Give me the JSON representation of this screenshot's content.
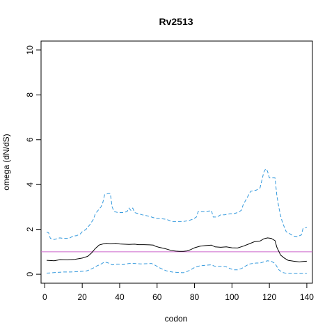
{
  "chart_data": {
    "type": "line",
    "title": "Rv2513",
    "xlabel": "codon",
    "ylabel": "omega (dN/dS)",
    "xlim": [
      -2,
      143
    ],
    "ylim": [
      -0.4,
      10.4
    ],
    "x_ticks": [
      0,
      20,
      40,
      60,
      80,
      100,
      120,
      140
    ],
    "y_ticks": [
      0,
      2,
      4,
      6,
      8,
      10
    ],
    "grid": false,
    "reference_line": {
      "y": 1,
      "color": "#cc66cc"
    },
    "colors": {
      "mean": "#000000",
      "bounds": "#3399dd"
    },
    "series": [
      {
        "style": "solid",
        "points": [
          [
            1,
            0.62
          ],
          [
            5,
            0.6
          ],
          [
            8,
            0.65
          ],
          [
            12,
            0.64
          ],
          [
            16,
            0.66
          ],
          [
            20,
            0.72
          ],
          [
            23,
            0.8
          ],
          [
            25,
            0.95
          ],
          [
            27,
            1.15
          ],
          [
            29,
            1.3
          ],
          [
            31,
            1.35
          ],
          [
            33,
            1.38
          ],
          [
            35,
            1.36
          ],
          [
            38,
            1.38
          ],
          [
            40,
            1.35
          ],
          [
            42,
            1.34
          ],
          [
            45,
            1.33
          ],
          [
            48,
            1.34
          ],
          [
            50,
            1.32
          ],
          [
            53,
            1.32
          ],
          [
            56,
            1.31
          ],
          [
            58,
            1.3
          ],
          [
            59,
            1.25
          ],
          [
            61,
            1.2
          ],
          [
            64,
            1.15
          ],
          [
            66,
            1.1
          ],
          [
            68,
            1.05
          ],
          [
            70,
            1.03
          ],
          [
            72,
            1.02
          ],
          [
            74,
            1.02
          ],
          [
            76,
            1.04
          ],
          [
            78,
            1.1
          ],
          [
            80,
            1.18
          ],
          [
            83,
            1.25
          ],
          [
            86,
            1.28
          ],
          [
            89,
            1.3
          ],
          [
            91,
            1.22
          ],
          [
            94,
            1.2
          ],
          [
            97,
            1.22
          ],
          [
            100,
            1.18
          ],
          [
            103,
            1.17
          ],
          [
            106,
            1.25
          ],
          [
            109,
            1.35
          ],
          [
            112,
            1.45
          ],
          [
            115,
            1.48
          ],
          [
            117,
            1.58
          ],
          [
            119,
            1.62
          ],
          [
            121,
            1.6
          ],
          [
            123,
            1.5
          ],
          [
            124,
            1.2
          ],
          [
            126,
            0.85
          ],
          [
            128,
            0.72
          ],
          [
            130,
            0.62
          ],
          [
            133,
            0.58
          ],
          [
            136,
            0.55
          ],
          [
            138,
            0.57
          ],
          [
            140,
            0.58
          ]
        ]
      },
      {
        "style": "dashed",
        "points": [
          [
            1,
            1.88
          ],
          [
            2,
            1.85
          ],
          [
            3,
            1.6
          ],
          [
            5,
            1.55
          ],
          [
            8,
            1.62
          ],
          [
            10,
            1.6
          ],
          [
            13,
            1.6
          ],
          [
            15,
            1.7
          ],
          [
            17,
            1.72
          ],
          [
            19,
            1.8
          ],
          [
            20,
            1.9
          ],
          [
            22,
            2.0
          ],
          [
            24,
            2.2
          ],
          [
            26,
            2.45
          ],
          [
            27,
            2.7
          ],
          [
            28,
            2.8
          ],
          [
            30,
            3.0
          ],
          [
            31,
            3.2
          ],
          [
            32,
            3.55
          ],
          [
            34,
            3.6
          ],
          [
            35,
            3.6
          ],
          [
            36,
            3.0
          ],
          [
            37,
            2.8
          ],
          [
            39,
            2.75
          ],
          [
            42,
            2.75
          ],
          [
            44,
            2.8
          ],
          [
            45,
            2.95
          ],
          [
            46,
            2.85
          ],
          [
            47,
            2.95
          ],
          [
            48,
            2.75
          ],
          [
            50,
            2.7
          ],
          [
            52,
            2.65
          ],
          [
            55,
            2.6
          ],
          [
            57,
            2.55
          ],
          [
            59,
            2.5
          ],
          [
            62,
            2.48
          ],
          [
            65,
            2.45
          ],
          [
            68,
            2.35
          ],
          [
            71,
            2.35
          ],
          [
            74,
            2.35
          ],
          [
            77,
            2.4
          ],
          [
            79,
            2.45
          ],
          [
            81,
            2.55
          ],
          [
            82,
            2.8
          ],
          [
            85,
            2.8
          ],
          [
            88,
            2.82
          ],
          [
            89,
            2.85
          ],
          [
            90,
            2.55
          ],
          [
            92,
            2.55
          ],
          [
            94,
            2.65
          ],
          [
            96,
            2.65
          ],
          [
            99,
            2.7
          ],
          [
            101,
            2.7
          ],
          [
            103,
            2.75
          ],
          [
            105,
            2.85
          ],
          [
            106,
            3.1
          ],
          [
            108,
            3.4
          ],
          [
            110,
            3.7
          ],
          [
            113,
            3.75
          ],
          [
            115,
            3.85
          ],
          [
            116,
            4.2
          ],
          [
            117,
            4.55
          ],
          [
            118,
            4.7
          ],
          [
            119,
            4.6
          ],
          [
            120,
            4.3
          ],
          [
            122,
            4.3
          ],
          [
            123,
            4.3
          ],
          [
            124,
            3.5
          ],
          [
            125,
            3.0
          ],
          [
            126,
            2.6
          ],
          [
            127,
            2.3
          ],
          [
            129,
            1.9
          ],
          [
            130,
            1.85
          ],
          [
            131,
            1.8
          ],
          [
            133,
            1.7
          ],
          [
            135,
            1.68
          ],
          [
            137,
            1.75
          ],
          [
            138,
            2.05
          ],
          [
            140,
            2.1
          ]
        ]
      },
      {
        "style": "dashed",
        "points": [
          [
            1,
            0.05
          ],
          [
            3,
            0.06
          ],
          [
            6,
            0.08
          ],
          [
            10,
            0.1
          ],
          [
            14,
            0.1
          ],
          [
            18,
            0.12
          ],
          [
            22,
            0.14
          ],
          [
            24,
            0.2
          ],
          [
            26,
            0.28
          ],
          [
            28,
            0.38
          ],
          [
            30,
            0.45
          ],
          [
            32,
            0.55
          ],
          [
            34,
            0.5
          ],
          [
            36,
            0.42
          ],
          [
            39,
            0.45
          ],
          [
            42,
            0.43
          ],
          [
            45,
            0.48
          ],
          [
            48,
            0.48
          ],
          [
            51,
            0.46
          ],
          [
            54,
            0.47
          ],
          [
            57,
            0.48
          ],
          [
            59,
            0.4
          ],
          [
            61,
            0.3
          ],
          [
            63,
            0.22
          ],
          [
            65,
            0.15
          ],
          [
            68,
            0.1
          ],
          [
            71,
            0.08
          ],
          [
            74,
            0.07
          ],
          [
            76,
            0.12
          ],
          [
            78,
            0.2
          ],
          [
            80,
            0.3
          ],
          [
            83,
            0.38
          ],
          [
            86,
            0.4
          ],
          [
            89,
            0.42
          ],
          [
            91,
            0.35
          ],
          [
            94,
            0.35
          ],
          [
            97,
            0.33
          ],
          [
            99,
            0.25
          ],
          [
            101,
            0.2
          ],
          [
            103,
            0.2
          ],
          [
            105,
            0.25
          ],
          [
            107,
            0.35
          ],
          [
            109,
            0.45
          ],
          [
            111,
            0.48
          ],
          [
            113,
            0.5
          ],
          [
            115,
            0.5
          ],
          [
            117,
            0.55
          ],
          [
            119,
            0.6
          ],
          [
            121,
            0.58
          ],
          [
            123,
            0.48
          ],
          [
            125,
            0.2
          ],
          [
            127,
            0.08
          ],
          [
            129,
            0.04
          ],
          [
            132,
            0.03
          ],
          [
            136,
            0.03
          ],
          [
            140,
            0.03
          ]
        ]
      }
    ]
  }
}
